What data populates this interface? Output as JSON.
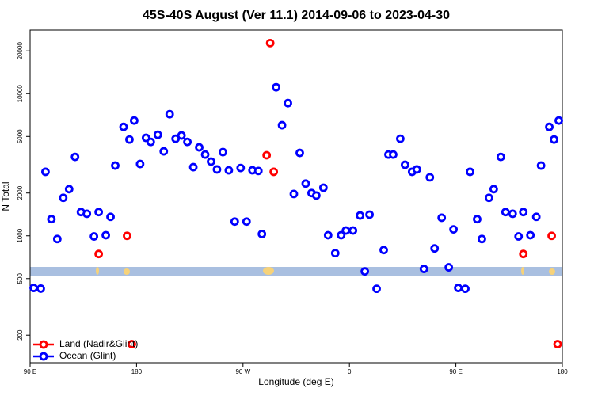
{
  "chart_data": {
    "type": "scatter",
    "title": "45S-40S August (Ver 11.1)   2014-09-06 to 2023-04-30",
    "x_label": "Longitude (deg E)",
    "y_label": "N Total",
    "log_y": true,
    "legend": "bottom-left",
    "xlim": [
      90,
      540
    ],
    "ylim": [
      128,
      28000
    ],
    "xticks": [
      {
        "value": 90,
        "label": "90 E"
      },
      {
        "value": 180,
        "label": "180"
      },
      {
        "value": 270,
        "label": "90 W"
      },
      {
        "value": 360,
        "label": "0"
      },
      {
        "value": 450,
        "label": "90 E"
      },
      {
        "value": 540,
        "label": "180"
      }
    ],
    "yticks": [
      200,
      500,
      1000,
      2000,
      5000,
      10000,
      20000
    ],
    "series": [
      {
        "name": "Land (Nadir&Glint)",
        "color": "#ff0000",
        "x": [
          148,
          172,
          176,
          290,
          293,
          296,
          507,
          531,
          536
        ],
        "values": [
          745,
          1000,
          173,
          3690,
          22700,
          2820,
          745,
          1000,
          173
        ]
      },
      {
        "name": "Ocean (Glint)",
        "color": "#0000ff",
        "x": [
          93,
          99,
          103,
          108,
          113,
          118,
          123,
          128,
          133,
          138,
          144,
          148,
          154,
          158,
          162,
          169,
          174,
          178,
          183,
          188,
          192,
          198,
          203,
          208,
          213,
          218,
          223,
          228,
          233,
          238,
          243,
          248,
          253,
          258,
          263,
          268,
          273,
          278,
          283,
          286,
          298,
          303,
          308,
          313,
          318,
          323,
          328,
          332,
          338,
          342,
          348,
          353,
          357,
          363,
          369,
          373,
          377,
          383,
          389,
          393,
          397,
          403,
          407,
          413,
          417,
          423,
          428,
          432,
          438,
          444,
          448,
          452,
          458,
          462,
          468,
          472,
          478,
          482,
          488,
          492,
          498,
          503,
          507,
          513,
          518,
          522,
          529,
          533,
          537
        ],
        "values": [
          430,
          425,
          2820,
          1310,
          950,
          1850,
          2130,
          3590,
          1470,
          1430,
          990,
          1470,
          1010,
          1360,
          3120,
          5840,
          4760,
          6470,
          3200,
          4890,
          4580,
          5140,
          3930,
          7170,
          4820,
          5080,
          4580,
          3040,
          4190,
          3730,
          3330,
          2930,
          3880,
          2890,
          1260,
          3000,
          1260,
          2890,
          2860,
          1030,
          11100,
          6000,
          8580,
          1970,
          3830,
          2330,
          2000,
          1920,
          2180,
          1010,
          755,
          1010,
          1090,
          1090,
          1390,
          562,
          1410,
          424,
          794,
          3730,
          3730,
          4820,
          3160,
          2820,
          2930,
          585,
          2580,
          815,
          1340,
          600,
          1110,
          430,
          424,
          2820,
          1310,
          950,
          1850,
          2130,
          3590,
          1470,
          1430,
          990,
          1470,
          1010,
          1360,
          3120,
          5840,
          4760,
          6470
        ]
      }
    ]
  }
}
